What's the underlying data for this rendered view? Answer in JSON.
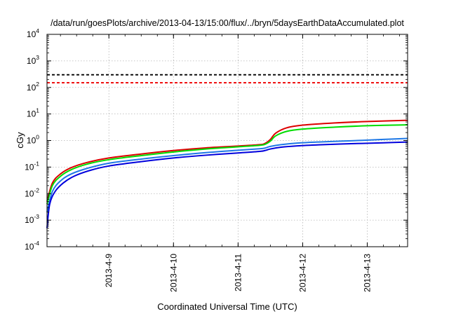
{
  "chart_data": {
    "type": "line",
    "title": "/data/run/goesPlots/archive/2013-04-13/15:00/flux/../bryn/5daysEarthDataAccumulated.plot",
    "xlabel": "Coordinated Universal Time (UTC)",
    "ylabel": "cGy",
    "y_scale": "log",
    "ylim": [
      0.0001,
      10000
    ],
    "y_ticks": [
      {
        "value": 0.0001,
        "base": "10",
        "exp": "-4"
      },
      {
        "value": 0.001,
        "base": "10",
        "exp": "-3"
      },
      {
        "value": 0.01,
        "base": "10",
        "exp": "-2"
      },
      {
        "value": 0.1,
        "base": "10",
        "exp": "-1"
      },
      {
        "value": 1,
        "base": "10",
        "exp": "0"
      },
      {
        "value": 10,
        "base": "10",
        "exp": "1"
      },
      {
        "value": 100,
        "base": "10",
        "exp": "2"
      },
      {
        "value": 1000,
        "base": "10",
        "exp": "3"
      },
      {
        "value": 10000,
        "base": "10",
        "exp": "4"
      }
    ],
    "xlim": [
      "2013-04-08 01:00",
      "2013-04-13 15:00"
    ],
    "x_ticks": [
      "2013-4-9",
      "2013-4-10",
      "2013-4-11",
      "2013-4-12",
      "2013-4-13"
    ],
    "grid": true,
    "thresholds": [
      {
        "value": 300,
        "color": "#000000",
        "style": "dashed"
      },
      {
        "value": 150,
        "color": "#ee0000",
        "style": "dashed"
      }
    ],
    "series": [
      {
        "color": "#dd0000",
        "points": [
          [
            "2013-04-08 01:00",
            0.005
          ],
          [
            "2013-04-08 03:00",
            0.025
          ],
          [
            "2013-04-08 06:00",
            0.055
          ],
          [
            "2013-04-08 10:00",
            0.095
          ],
          [
            "2013-04-08 16:00",
            0.15
          ],
          [
            "2013-04-09 00:00",
            0.22
          ],
          [
            "2013-04-09 12:00",
            0.31
          ],
          [
            "2013-04-10 00:00",
            0.42
          ],
          [
            "2013-04-10 12:00",
            0.53
          ],
          [
            "2013-04-11 00:00",
            0.62
          ],
          [
            "2013-04-11 08:00",
            0.7
          ],
          [
            "2013-04-11 10:00",
            0.78
          ],
          [
            "2013-04-11 12:00",
            1.1
          ],
          [
            "2013-04-11 14:00",
            1.9
          ],
          [
            "2013-04-11 18:00",
            3.0
          ],
          [
            "2013-04-12 00:00",
            3.8
          ],
          [
            "2013-04-12 12:00",
            4.6
          ],
          [
            "2013-04-13 00:00",
            5.2
          ],
          [
            "2013-04-13 15:00",
            5.8
          ]
        ]
      },
      {
        "color": "#00dd00",
        "points": [
          [
            "2013-04-08 01:00",
            0.004
          ],
          [
            "2013-04-08 03:00",
            0.02
          ],
          [
            "2013-04-08 06:00",
            0.045
          ],
          [
            "2013-04-08 10:00",
            0.08
          ],
          [
            "2013-04-08 16:00",
            0.13
          ],
          [
            "2013-04-09 00:00",
            0.19
          ],
          [
            "2013-04-09 12:00",
            0.27
          ],
          [
            "2013-04-10 00:00",
            0.37
          ],
          [
            "2013-04-10 12:00",
            0.48
          ],
          [
            "2013-04-11 00:00",
            0.58
          ],
          [
            "2013-04-11 08:00",
            0.66
          ],
          [
            "2013-04-11 10:00",
            0.72
          ],
          [
            "2013-04-11 12:00",
            0.95
          ],
          [
            "2013-04-11 14:00",
            1.5
          ],
          [
            "2013-04-11 18:00",
            2.2
          ],
          [
            "2013-04-12 00:00",
            2.7
          ],
          [
            "2013-04-12 12:00",
            3.2
          ],
          [
            "2013-04-13 00:00",
            3.6
          ],
          [
            "2013-04-13 15:00",
            3.9
          ]
        ]
      },
      {
        "color": "#1e78e6",
        "points": [
          [
            "2013-04-08 01:00",
            0.002
          ],
          [
            "2013-04-08 03:00",
            0.012
          ],
          [
            "2013-04-08 06:00",
            0.03
          ],
          [
            "2013-04-08 10:00",
            0.055
          ],
          [
            "2013-04-08 16:00",
            0.09
          ],
          [
            "2013-04-09 00:00",
            0.14
          ],
          [
            "2013-04-09 12:00",
            0.2
          ],
          [
            "2013-04-10 00:00",
            0.27
          ],
          [
            "2013-04-10 12:00",
            0.35
          ],
          [
            "2013-04-11 00:00",
            0.43
          ],
          [
            "2013-04-11 08:00",
            0.49
          ],
          [
            "2013-04-11 10:00",
            0.52
          ],
          [
            "2013-04-11 12:00",
            0.6
          ],
          [
            "2013-04-11 16:00",
            0.7
          ],
          [
            "2013-04-11 22:00",
            0.8
          ],
          [
            "2013-04-12 06:00",
            0.88
          ],
          [
            "2013-04-12 18:00",
            0.98
          ],
          [
            "2013-04-13 06:00",
            1.1
          ],
          [
            "2013-04-13 15:00",
            1.2
          ]
        ]
      },
      {
        "color": "#0000dd",
        "points": [
          [
            "2013-04-08 01:00",
            0.0005
          ],
          [
            "2013-04-08 02:00",
            0.004
          ],
          [
            "2013-04-08 04:00",
            0.012
          ],
          [
            "2013-04-08 07:00",
            0.025
          ],
          [
            "2013-04-08 11:00",
            0.045
          ],
          [
            "2013-04-08 17:00",
            0.075
          ],
          [
            "2013-04-09 00:00",
            0.11
          ],
          [
            "2013-04-09 12:00",
            0.16
          ],
          [
            "2013-04-10 00:00",
            0.22
          ],
          [
            "2013-04-10 12:00",
            0.28
          ],
          [
            "2013-04-11 00:00",
            0.34
          ],
          [
            "2013-04-11 08:00",
            0.39
          ],
          [
            "2013-04-11 10:00",
            0.42
          ],
          [
            "2013-04-11 12:00",
            0.48
          ],
          [
            "2013-04-11 16:00",
            0.56
          ],
          [
            "2013-04-11 22:00",
            0.63
          ],
          [
            "2013-04-12 06:00",
            0.69
          ],
          [
            "2013-04-12 18:00",
            0.76
          ],
          [
            "2013-04-13 06:00",
            0.82
          ],
          [
            "2013-04-13 15:00",
            0.88
          ]
        ]
      }
    ]
  }
}
